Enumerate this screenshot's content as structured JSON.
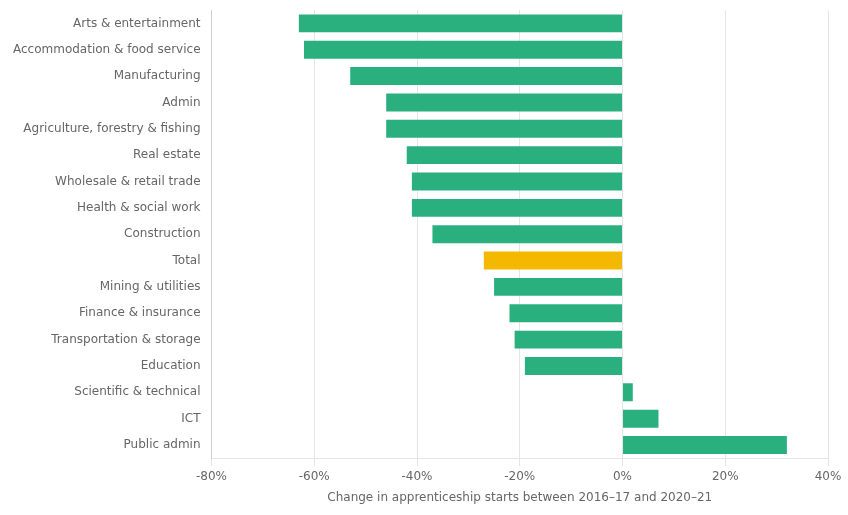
{
  "chart_data": {
    "type": "bar",
    "orientation": "horizontal",
    "categories": [
      "Arts & entertainment",
      "Accommodation & food service",
      "Manufacturing",
      "Admin",
      "Agriculture, forestry & fishing",
      "Real estate",
      "Wholesale & retail trade",
      "Health & social work",
      "Construction",
      "Total",
      "Mining & utilities",
      "Finance & insurance",
      "Transportation & storage",
      "Education",
      "Scientific & technical",
      "ICT",
      "Public admin"
    ],
    "values": [
      -63,
      -62,
      -53,
      -46,
      -46,
      -42,
      -41,
      -41,
      -37,
      -27,
      -25,
      -22,
      -21,
      -19,
      2,
      7,
      32
    ],
    "colors": [
      "#2ab07f",
      "#2ab07f",
      "#2ab07f",
      "#2ab07f",
      "#2ab07f",
      "#2ab07f",
      "#2ab07f",
      "#2ab07f",
      "#2ab07f",
      "#f5b800",
      "#2ab07f",
      "#2ab07f",
      "#2ab07f",
      "#2ab07f",
      "#2ab07f",
      "#2ab07f",
      "#2ab07f"
    ],
    "xlabel": "Change in apprenticeship starts between 2016–17 and 2020–21",
    "xlim": [
      -80,
      40
    ],
    "xticks": [
      {
        "value": -80,
        "label": "-80%"
      },
      {
        "value": -60,
        "label": "-60%"
      },
      {
        "value": -40,
        "label": "-40%"
      },
      {
        "value": -20,
        "label": "-20%"
      },
      {
        "value": 0,
        "label": "0%"
      },
      {
        "value": 20,
        "label": "20%"
      },
      {
        "value": 40,
        "label": "40%"
      }
    ],
    "grid": true
  }
}
